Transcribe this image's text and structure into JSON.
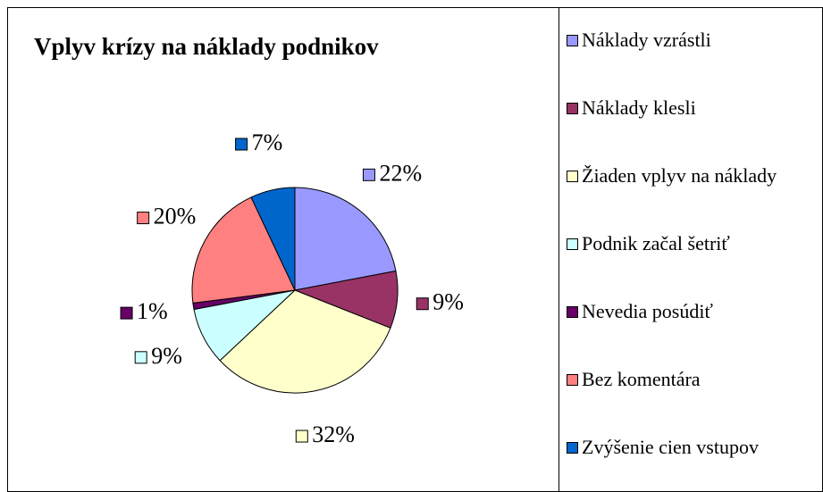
{
  "chart_data": {
    "type": "pie",
    "title": "Vplyv krízy na náklady podnikov",
    "categories": [
      "Náklady vzrástli",
      "Náklady klesli",
      "Žiaden vplyv na náklady",
      "Podnik začal šetriť",
      "Nevedia posúdiť",
      "Bez komentára",
      "Zvýšenie cien vstupov"
    ],
    "values": [
      22,
      9,
      32,
      9,
      1,
      20,
      7
    ],
    "value_labels": [
      "22%",
      "9%",
      "32%",
      "9%",
      "1%",
      "20%",
      "7%"
    ],
    "colors": [
      "#9999ff",
      "#993366",
      "#ffffcc",
      "#ccffff",
      "#660066",
      "#ff8080",
      "#0066cc"
    ],
    "legend": "right"
  }
}
